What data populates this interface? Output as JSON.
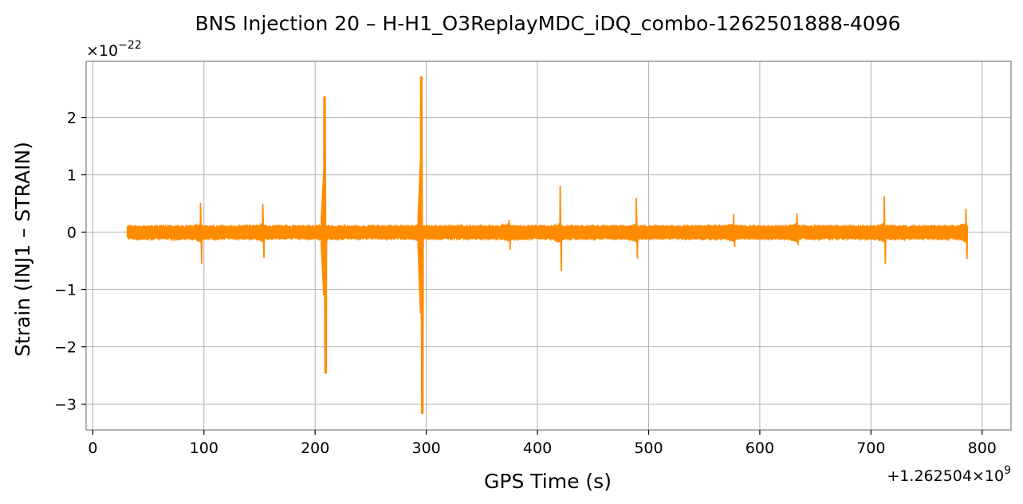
{
  "chart_data": {
    "type": "line",
    "title": "BNS Injection 20 – H-H1_O3ReplayMDC_iDQ_combo-1262501888-4096",
    "xlabel": "GPS Time (s)",
    "ylabel": "Strain (INJ1 – STRAIN)",
    "x_offset_label": "+1.262504×10^9",
    "y_scale_label": "×10^−22",
    "xlim": [
      -6,
      826
    ],
    "ylim": [
      -3.45,
      2.98
    ],
    "x_ticks": [
      0,
      100,
      200,
      300,
      400,
      500,
      600,
      700,
      800
    ],
    "x_tick_labels": [
      "0",
      "100",
      "200",
      "300",
      "400",
      "500",
      "600",
      "700",
      "800"
    ],
    "y_ticks": [
      -3,
      -2,
      -1,
      0,
      1,
      2
    ],
    "y_tick_labels": [
      "−3",
      "−2",
      "−1",
      "0",
      "1",
      "2"
    ],
    "grid": true,
    "series": [
      {
        "color": "#ff8c00",
        "x_range": [
          31,
          787
        ],
        "baseline_noise_amplitude": 0.13,
        "glitches": [
          {
            "x": 97.5,
            "max": 0.5,
            "min": -0.55
          },
          {
            "x": 153.5,
            "max": 0.48,
            "min": -0.44
          },
          {
            "x": 209,
            "max": 2.35,
            "min": -2.45
          },
          {
            "x": 296,
            "max": 2.7,
            "min": -3.15
          },
          {
            "x": 375,
            "max": 0.21,
            "min": -0.3
          },
          {
            "x": 421,
            "max": 0.8,
            "min": -0.67
          },
          {
            "x": 489.5,
            "max": 0.59,
            "min": -0.45
          },
          {
            "x": 577,
            "max": 0.31,
            "min": -0.25
          },
          {
            "x": 634,
            "max": 0.32,
            "min": -0.22
          },
          {
            "x": 712.5,
            "max": 0.62,
            "min": -0.55
          },
          {
            "x": 786,
            "max": 0.4,
            "min": -0.46
          }
        ]
      }
    ]
  }
}
